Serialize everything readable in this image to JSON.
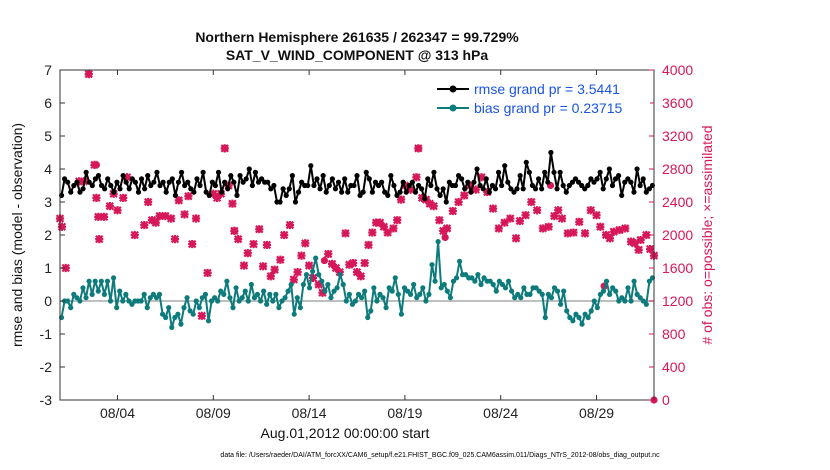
{
  "chart_data": {
    "type": "line",
    "title": [
      "Northern Hemisphere 261635 / 262347 = 99.729%",
      "SAT_V_WIND_COMPONENT @ 313 hPa"
    ],
    "xlabel": "Aug.01,2012 00:00:00 start",
    "ylabel_left": "rmse and bias (model - observation)",
    "ylabel_right": "# of obs: o=possible; ×=assimilated",
    "footnote": "data file: /Users/raeder/DAI/ATM_forcXX/CAM6_setup/f.e21.FHIST_BGC.f09_025.CAM6assim.011/Diags_NTrS_2012-08/obs_diag_output.nc",
    "xlim": [
      0,
      31
    ],
    "ylim_left": [
      -3,
      7
    ],
    "ylim_right": [
      0,
      4000
    ],
    "x_ticks": [
      3,
      8,
      13,
      18,
      23,
      28
    ],
    "x_tick_labels": [
      "08/04",
      "08/09",
      "08/14",
      "08/19",
      "08/24",
      "08/29"
    ],
    "y_left_ticks": [
      -3,
      -2,
      -1,
      0,
      1,
      2,
      3,
      4,
      5,
      6,
      7
    ],
    "y_left_tick_labels": [
      "-3",
      "-2",
      "-1",
      "0",
      "1",
      "2",
      "3",
      "4",
      "5",
      "6",
      "7"
    ],
    "y_right_ticks": [
      0,
      400,
      800,
      1200,
      1600,
      2000,
      2400,
      2800,
      3200,
      3600,
      4000
    ],
    "y_right_tick_labels": [
      "0",
      "400",
      "800",
      "1200",
      "1600",
      "2000",
      "2400",
      "2800",
      "3200",
      "3600",
      "4000"
    ],
    "colors": {
      "rmse": "#000000",
      "bias": "#0d7b7b",
      "obs": "#d6175a",
      "zero_line": "#aaaaaa",
      "legend_text": "#1a55e0"
    },
    "legend": [
      {
        "label": "rmse grand pr = 3.5441",
        "series": "rmse"
      },
      {
        "label": "bias grand pr = 0.23715",
        "series": "bias"
      }
    ],
    "series": [
      {
        "name": "rmse",
        "axis": "left",
        "values": [
          3.2,
          3.7,
          3.6,
          3.3,
          3.5,
          3.6,
          3.3,
          3.4,
          3.9,
          3.6,
          3.5,
          3.7,
          3.8,
          3.5,
          3.4,
          3.7,
          3.5,
          3.3,
          3.6,
          3.4,
          3.8,
          3.6,
          3.4,
          3.7,
          3.6,
          3.3,
          3.7,
          3.4,
          3.8,
          3.5,
          3.6,
          3.9,
          3.5,
          3.6,
          3.3,
          3.6,
          3.7,
          3.2,
          3.6,
          3.9,
          3.5,
          3.6,
          3.4,
          3.3,
          3.7,
          3.5,
          3.9,
          3.3,
          3.2,
          3.6,
          3.5,
          3.9,
          3.3,
          3.6,
          3.4,
          3.8,
          3.6,
          3.2,
          3.8,
          3.6,
          3.7,
          4.0,
          3.5,
          3.9,
          3.6,
          3.7,
          3.6,
          3.6,
          3.4,
          3.5,
          3.0,
          3.0,
          3.4,
          3.2,
          3.4,
          3.8,
          3.0,
          3.3,
          3.6,
          3.5,
          3.5,
          4.1,
          3.5,
          3.7,
          3.4,
          3.8,
          3.3,
          3.5,
          3.7,
          3.4,
          3.6,
          3.3,
          3.7,
          3.3,
          3.5,
          3.5,
          3.8,
          3.2,
          3.3,
          3.9,
          3.7,
          3.3,
          3.6,
          3.5,
          3.6,
          3.3,
          3.2,
          3.8,
          3.5,
          3.2,
          3.3,
          3.6,
          3.3,
          3.5,
          3.6,
          3.3,
          3.5,
          3.4,
          3.1,
          3.7,
          3.5,
          3.9,
          3.4,
          3.2,
          3.4,
          3.0,
          3.6,
          3.5,
          3.5,
          3.8,
          3.7,
          3.4,
          3.6,
          3.3,
          3.6,
          4.0,
          3.5,
          3.4,
          3.7,
          3.3,
          3.5,
          3.4,
          3.9,
          3.5,
          4.1,
          3.6,
          3.4,
          3.3,
          3.4,
          3.8,
          3.4,
          4.2,
          3.9,
          3.5,
          3.4,
          3.7,
          3.4,
          3.9,
          3.6,
          4.5,
          3.9,
          3.4,
          3.9,
          3.5,
          3.3,
          3.5,
          3.6,
          3.7,
          3.6,
          3.5,
          3.4,
          3.5,
          3.7,
          3.6,
          3.7,
          3.9,
          3.4,
          3.7,
          4.0,
          3.5,
          3.7,
          3.8,
          3.2,
          3.6,
          3.7,
          3.6,
          3.3,
          4.0,
          3.5,
          3.7,
          3.3,
          3.4,
          3.5
        ]
      },
      {
        "name": "bias",
        "axis": "left",
        "values": [
          -0.5,
          0.0,
          0.0,
          -0.2,
          0.2,
          0.1,
          0.0,
          0.4,
          0.1,
          0.6,
          0.2,
          0.6,
          0.3,
          0.6,
          0.2,
          0.6,
          0.0,
          0.7,
          -0.2,
          0.3,
          0.0,
          0.2,
          0.0,
          -0.1,
          0.0,
          0.0,
          0.0,
          0.2,
          -0.2,
          0.1,
          0.2,
          0.1,
          0.2,
          -0.4,
          -0.5,
          -0.2,
          -0.8,
          -0.5,
          -0.4,
          -0.7,
          -0.2,
          0.1,
          -0.3,
          -0.4,
          0.0,
          -0.2,
          0.1,
          0.2,
          -0.6,
          0.0,
          0.1,
          0.0,
          0.3,
          0.2,
          0.6,
          0.1,
          -0.2,
          0.4,
          0.0,
          0.1,
          0.3,
          0.0,
          0.5,
          0.1,
          0.2,
          0.0,
          0.3,
          -0.1,
          0.2,
          0.0,
          0.2,
          -0.2,
          0.0,
          0.1,
          0.3,
          0.5,
          -0.4,
          0.1,
          -0.2,
          0.5,
          0.8,
          0.4,
          0.9,
          1.3,
          0.8,
          0.6,
          0.3,
          0.5,
          0.1,
          0.3,
          0.4,
          0.8,
          0.5,
          0.0,
          0.2,
          -0.1,
          0.0,
          0.2,
          0.1,
          0.3,
          -0.5,
          -0.3,
          0.4,
          0.0,
          0.2,
          0.1,
          -0.2,
          0.4,
          0.3,
          0.7,
          0.2,
          -0.4,
          0.4,
          0.3,
          0.2,
          0.5,
          0.1,
          0.2,
          0.4,
          0.0,
          0.2,
          1.1,
          0.6,
          1.8,
          0.4,
          0.5,
          0.3,
          0.1,
          0.6,
          0.7,
          1.2,
          0.8,
          0.8,
          0.7,
          0.7,
          0.6,
          0.8,
          0.5,
          0.7,
          0.6,
          0.6,
          0.5,
          0.3,
          0.6,
          0.5,
          0.4,
          0.6,
          0.3,
          0.1,
          0.2,
          0.1,
          0.4,
          0.2,
          0.2,
          0.4,
          0.4,
          0.3,
          0.2,
          -0.5,
          0.2,
          0.1,
          0.4,
          0.3,
          -0.1,
          0.3,
          -0.3,
          -0.5,
          -0.6,
          -0.4,
          -0.5,
          -0.7,
          -0.4,
          -0.5,
          -0.3,
          0.0,
          -0.2,
          0.2,
          0.3,
          0.6,
          0.2,
          0.4,
          0.3,
          0.0,
          0.1,
          0.0,
          0.4,
          0.0,
          0.6,
          0.2,
          0.1,
          0.0,
          -0.1,
          0.6,
          0.7
        ]
      },
      {
        "name": "obs_assimilated",
        "axis": "right",
        "values": [
          [
            0.0,
            2200
          ],
          [
            0.1,
            2100
          ],
          [
            0.3,
            1600
          ],
          [
            1.0,
            2650
          ],
          [
            1.25,
            2650
          ],
          [
            1.5,
            3950
          ],
          [
            1.8,
            2850
          ],
          [
            1.9,
            2450
          ],
          [
            2.0,
            2220
          ],
          [
            2.05,
            1950
          ],
          [
            2.3,
            2220
          ],
          [
            2.6,
            2350
          ],
          [
            2.8,
            2500
          ],
          [
            3.0,
            2300
          ],
          [
            3.3,
            2450
          ],
          [
            3.5,
            2700
          ],
          [
            3.9,
            2000
          ],
          [
            4.4,
            2120
          ],
          [
            4.6,
            2400
          ],
          [
            4.8,
            2180
          ],
          [
            5.0,
            2150
          ],
          [
            5.2,
            2230
          ],
          [
            5.5,
            2230
          ],
          [
            5.8,
            2200
          ],
          [
            6.0,
            1950
          ],
          [
            6.2,
            2420
          ],
          [
            6.5,
            2250
          ],
          [
            6.7,
            2470
          ],
          [
            6.9,
            1890
          ],
          [
            7.1,
            2200
          ],
          [
            7.4,
            1020
          ],
          [
            7.7,
            1540
          ],
          [
            8.0,
            2500
          ],
          [
            8.2,
            2450
          ],
          [
            8.4,
            2500
          ],
          [
            8.6,
            3050
          ],
          [
            8.8,
            2600
          ],
          [
            9.0,
            2380
          ],
          [
            9.1,
            2050
          ],
          [
            9.3,
            1950
          ],
          [
            9.6,
            1630
          ],
          [
            9.8,
            1780
          ],
          [
            10.1,
            1890
          ],
          [
            10.4,
            2070
          ],
          [
            10.6,
            1620
          ],
          [
            10.8,
            1880
          ],
          [
            11.0,
            1500
          ],
          [
            11.2,
            1580
          ],
          [
            11.5,
            1700
          ],
          [
            11.7,
            2000
          ],
          [
            12.0,
            2120
          ],
          [
            12.2,
            1460
          ],
          [
            12.4,
            1550
          ],
          [
            12.6,
            1750
          ],
          [
            12.8,
            1900
          ],
          [
            13.0,
            1630
          ],
          [
            13.2,
            1480
          ],
          [
            13.5,
            1400
          ],
          [
            13.7,
            1300
          ],
          [
            14.0,
            1770
          ],
          [
            14.2,
            1650
          ],
          [
            14.4,
            1600
          ],
          [
            14.6,
            1550
          ],
          [
            14.9,
            2020
          ],
          [
            15.1,
            1640
          ],
          [
            15.3,
            1660
          ],
          [
            15.5,
            1550
          ],
          [
            15.7,
            1500
          ],
          [
            15.9,
            1660
          ],
          [
            16.1,
            1880
          ],
          [
            16.3,
            2030
          ],
          [
            16.5,
            2150
          ],
          [
            16.7,
            2150
          ],
          [
            16.9,
            2100
          ],
          [
            17.1,
            2030
          ],
          [
            17.4,
            2080
          ],
          [
            17.6,
            2180
          ],
          [
            17.8,
            2430
          ],
          [
            18.0,
            2600
          ],
          [
            18.3,
            2550
          ],
          [
            18.6,
            2700
          ],
          [
            18.7,
            3050
          ],
          [
            18.9,
            2450
          ],
          [
            19.1,
            2430
          ],
          [
            19.3,
            2380
          ],
          [
            19.5,
            2350
          ],
          [
            19.8,
            2180
          ],
          [
            20.0,
            2050
          ],
          [
            20.2,
            2080
          ],
          [
            20.5,
            2290
          ],
          [
            20.8,
            2400
          ],
          [
            21.1,
            2480
          ],
          [
            21.4,
            2600
          ],
          [
            21.7,
            2550
          ],
          [
            22.0,
            2700
          ],
          [
            22.3,
            2520
          ],
          [
            22.6,
            2320
          ],
          [
            22.9,
            2080
          ],
          [
            23.2,
            2150
          ],
          [
            23.5,
            2200
          ],
          [
            23.8,
            1960
          ],
          [
            24.0,
            2170
          ],
          [
            24.3,
            2240
          ],
          [
            24.6,
            2400
          ],
          [
            24.9,
            2300
          ],
          [
            25.2,
            2080
          ],
          [
            25.5,
            2100
          ],
          [
            25.8,
            2230
          ],
          [
            26.0,
            2300
          ],
          [
            26.2,
            2200
          ],
          [
            26.5,
            2020
          ],
          [
            26.8,
            2030
          ],
          [
            27.1,
            2160
          ],
          [
            27.4,
            2020
          ],
          [
            27.7,
            2300
          ],
          [
            28.0,
            2240
          ],
          [
            28.2,
            2100
          ],
          [
            28.5,
            2000
          ],
          [
            28.7,
            1960
          ],
          [
            28.9,
            2040
          ],
          [
            29.2,
            2060
          ],
          [
            29.5,
            2080
          ],
          [
            29.8,
            1920
          ],
          [
            30.0,
            1900
          ],
          [
            30.3,
            1940
          ],
          [
            30.6,
            2000
          ],
          [
            30.8,
            1830
          ],
          [
            31.0,
            1750
          ],
          [
            30.2,
            1820
          ]
        ]
      },
      {
        "name": "obs_possible",
        "axis": "right",
        "values": [
          [
            1.5,
            3950
          ],
          [
            1.9,
            2850
          ],
          [
            8.6,
            3050
          ],
          [
            9.1,
            2050
          ],
          [
            13.8,
            1690
          ],
          [
            18.7,
            3050
          ],
          [
            20.1,
            1970
          ],
          [
            25.6,
            2600
          ],
          [
            28.4,
            1380
          ],
          [
            31.0,
            0
          ]
        ]
      }
    ]
  }
}
